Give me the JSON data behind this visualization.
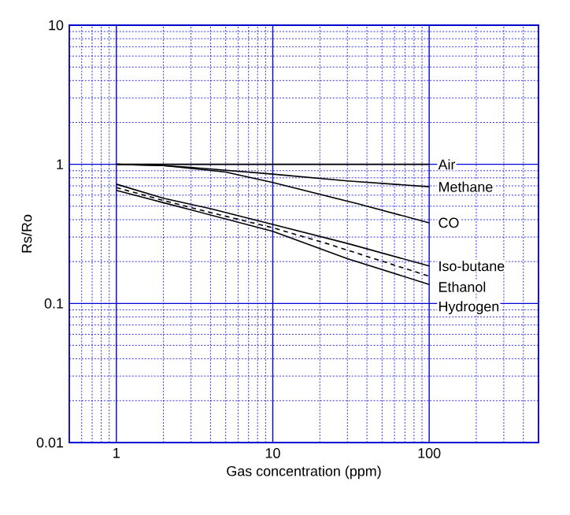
{
  "chart_data": {
    "type": "line",
    "xlabel": "Gas concentration (ppm)",
    "ylabel": "Rs/Ro",
    "log": "xy",
    "grid": true,
    "legend": false,
    "marker": "none",
    "xlim": [
      0.5,
      500
    ],
    "ylim": [
      0.01,
      10
    ],
    "xticks": [
      {
        "value": 0.5,
        "label": null
      },
      {
        "value": 0.6,
        "label": null
      },
      {
        "value": 0.7,
        "label": null
      },
      {
        "value": 0.8,
        "label": null
      },
      {
        "value": 0.9,
        "label": null
      },
      1,
      {
        "value": 2,
        "label": null
      },
      {
        "value": 3,
        "label": null
      },
      {
        "value": 4,
        "label": null
      },
      {
        "value": 5,
        "label": null
      },
      {
        "value": 6,
        "label": null
      },
      {
        "value": 7,
        "label": null
      },
      {
        "value": 8,
        "label": null
      },
      {
        "value": 9,
        "label": null
      },
      10,
      {
        "value": 20,
        "label": null
      },
      {
        "value": 30,
        "label": null
      },
      {
        "value": 40,
        "label": null
      },
      {
        "value": 50,
        "label": null
      },
      {
        "value": 60,
        "label": null
      },
      {
        "value": 70,
        "label": null
      },
      {
        "value": 80,
        "label": null
      },
      {
        "value": 90,
        "label": null
      },
      100,
      {
        "value": 200,
        "label": null
      },
      {
        "value": 300,
        "label": null
      },
      {
        "value": 400,
        "label": null
      },
      {
        "value": 500,
        "label": null
      }
    ],
    "yticks": [
      0.01,
      {
        "value": 0.02,
        "label": null
      },
      {
        "value": 0.03,
        "label": null
      },
      {
        "value": 0.04,
        "label": null
      },
      {
        "value": 0.05,
        "label": null
      },
      {
        "value": 0.06,
        "label": null
      },
      {
        "value": 0.07,
        "label": null
      },
      {
        "value": 0.08,
        "label": null
      },
      {
        "value": 0.09,
        "label": null
      },
      0.1,
      {
        "value": 0.2,
        "label": null
      },
      {
        "value": 0.3,
        "label": null
      },
      {
        "value": 0.4,
        "label": null
      },
      {
        "value": 0.5,
        "label": null
      },
      {
        "value": 0.6,
        "label": null
      },
      {
        "value": 0.7,
        "label": null
      },
      {
        "value": 0.8,
        "label": null
      },
      {
        "value": 0.9,
        "label": null
      },
      1,
      {
        "value": 2,
        "label": null
      },
      {
        "value": 3,
        "label": null
      },
      {
        "value": 4,
        "label": null
      },
      {
        "value": 5,
        "label": null
      },
      {
        "value": 6,
        "label": null
      },
      {
        "value": 7,
        "label": null
      },
      {
        "value": 8,
        "label": null
      },
      {
        "value": 9,
        "label": null
      },
      10
    ],
    "series": [
      {
        "name": "Air",
        "color": "#000000",
        "x": [
          1,
          100
        ],
        "values": [
          1,
          1
        ]
      },
      {
        "name": "Methane",
        "color": "#000000",
        "x": [
          1,
          2,
          3,
          10,
          30,
          100
        ],
        "values": [
          1,
          0.98,
          0.95,
          0.85,
          0.76,
          0.69
        ]
      },
      {
        "name": "CO",
        "color": "#000000",
        "x": [
          1,
          2,
          5,
          10,
          35,
          100
        ],
        "values": [
          1,
          0.98,
          0.88,
          0.74,
          0.52,
          0.38
        ]
      },
      {
        "name": "Iso-butane",
        "color": "#000000",
        "x": [
          1,
          2,
          4,
          10,
          30,
          100
        ],
        "values": [
          0.72,
          0.57,
          0.48,
          0.37,
          0.27,
          0.186
        ]
      },
      {
        "name": "Ethanol",
        "color": "#000000",
        "line_style": "dashed",
        "x": [
          1,
          2,
          4,
          10,
          22,
          100
        ],
        "values": [
          0.68,
          0.55,
          0.45,
          0.35,
          0.27,
          0.157
        ]
      },
      {
        "name": "Hydrogen",
        "color": "#000000",
        "x": [
          1,
          2,
          10,
          30,
          100
        ],
        "values": [
          0.65,
          0.53,
          0.33,
          0.21,
          0.137
        ]
      }
    ]
  }
}
